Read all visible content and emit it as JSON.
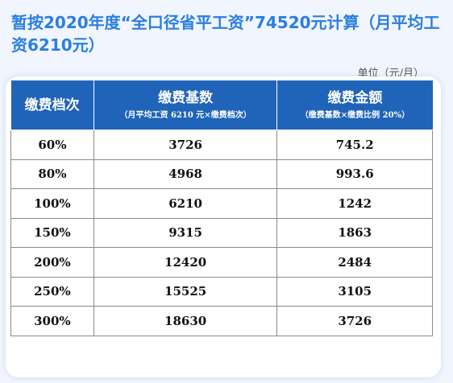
{
  "title": "暂按2020年度“全口径省平工资”74520元计算（月平均工资6210元）",
  "unit_note": "单位（元/月）",
  "table": {
    "headers": [
      {
        "main": "缴费档次",
        "sub": ""
      },
      {
        "main": "缴费基数",
        "sub": "（月平均工资 6210 元×缴费档次）"
      },
      {
        "main": "缴费金额",
        "sub": "（缴费基数×缴费比例 20%）"
      }
    ],
    "rows": [
      {
        "level": "60%",
        "base": "3726",
        "amount": "745.2"
      },
      {
        "level": "80%",
        "base": "4968",
        "amount": "993.6"
      },
      {
        "level": "100%",
        "base": "6210",
        "amount": "1242"
      },
      {
        "level": "150%",
        "base": "9315",
        "amount": "1863"
      },
      {
        "level": "200%",
        "base": "12420",
        "amount": "2484"
      },
      {
        "level": "250%",
        "base": "15525",
        "amount": "3105"
      },
      {
        "level": "300%",
        "base": "18630",
        "amount": "3726"
      }
    ]
  },
  "colors": {
    "title": "#2a7fe0",
    "header_bg": "#1f64b8",
    "page_bg": "#f1f5fd"
  }
}
